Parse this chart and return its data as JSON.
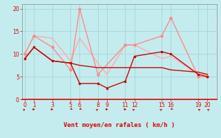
{
  "background_color": "#c4ecee",
  "grid_color": "#a8d8da",
  "text_color": "#dd0000",
  "ylim": [
    0,
    21
  ],
  "yticks": [
    0,
    5,
    10,
    15,
    20
  ],
  "xticks": [
    0,
    1,
    3,
    5,
    6,
    8,
    9,
    11,
    12,
    15,
    16,
    19,
    20
  ],
  "xlabel": "Vent moyen/en rafales ( km/h )",
  "line_dark1": {
    "x": [
      0,
      1,
      3,
      5,
      6,
      8,
      9,
      11,
      12,
      15,
      16,
      19,
      20
    ],
    "y": [
      9,
      11.5,
      8.5,
      8,
      3.5,
      3.5,
      2.5,
      4,
      9.5,
      10.5,
      10,
      5.5,
      5
    ],
    "color": "#cc0000",
    "lw": 1.0,
    "marker": "s",
    "ms": 2.0
  },
  "line_dark2": {
    "x": [
      0,
      1,
      3,
      5,
      6,
      8,
      9,
      11,
      12,
      15,
      16,
      19,
      20
    ],
    "y": [
      9,
      11.5,
      8.5,
      8,
      7.5,
      7,
      7,
      7,
      7,
      7,
      6.5,
      6,
      5.5
    ],
    "color": "#cc0000",
    "lw": 1.0,
    "marker": null,
    "ms": 0
  },
  "line_light1": {
    "x": [
      0,
      1,
      3,
      5,
      6,
      8,
      11,
      12,
      15,
      16,
      19,
      20
    ],
    "y": [
      10,
      14,
      11.5,
      6.5,
      20,
      5.5,
      12,
      12,
      14,
      18,
      5,
      5
    ],
    "color": "#ff8888",
    "lw": 1.0,
    "marker": "D",
    "ms": 2.0
  },
  "line_light2": {
    "x": [
      0,
      1,
      3,
      5,
      6,
      8,
      9,
      11,
      12,
      15,
      16,
      19,
      20
    ],
    "y": [
      10,
      14,
      13.5,
      8.5,
      13.5,
      8,
      5.5,
      12,
      12,
      9,
      9.5,
      5.5,
      5.5
    ],
    "color": "#ffaaaa",
    "lw": 1.0,
    "marker": null,
    "ms": 0
  },
  "wind_dirs": {
    "x": [
      0,
      1,
      3,
      5,
      6,
      8,
      9,
      11,
      12,
      15,
      16,
      19,
      20
    ],
    "angles": [
      45,
      90,
      90,
      225,
      225,
      45,
      90,
      90,
      45,
      45,
      225,
      315,
      315
    ]
  }
}
